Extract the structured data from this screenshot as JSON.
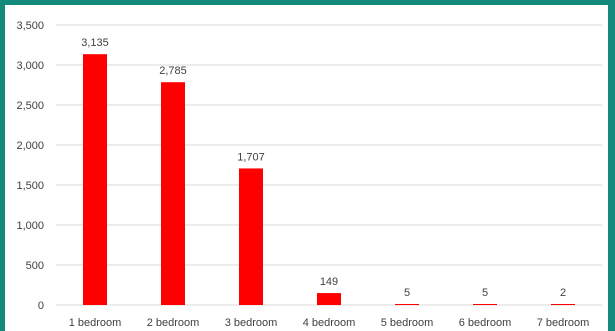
{
  "colors": {
    "frame": "#138a7c",
    "background": "#ffffff",
    "bar": "#ff0000",
    "grid": "#d9d9d9",
    "text": "#404040"
  },
  "chart_data": {
    "type": "bar",
    "title": "",
    "xlabel": "",
    "ylabel": "",
    "categories": [
      "1 bedroom",
      "2 bedroom",
      "3 bedroom",
      "4 bedroom",
      "5 bedroom",
      "6 bedroom",
      "7 bedroom"
    ],
    "values": [
      3135,
      2785,
      1707,
      149,
      5,
      5,
      2
    ],
    "data_labels": [
      "3,135",
      "2,785",
      "1,707",
      "149",
      "5",
      "5",
      "2"
    ],
    "ylim": [
      0,
      3500
    ],
    "yticks": [
      0,
      500,
      1000,
      1500,
      2000,
      2500,
      3000,
      3500
    ],
    "ytick_labels": [
      "0",
      "500",
      "1,000",
      "1,500",
      "2,000",
      "2,500",
      "3,000",
      "3,500"
    ],
    "grid": true,
    "legend": "none"
  }
}
